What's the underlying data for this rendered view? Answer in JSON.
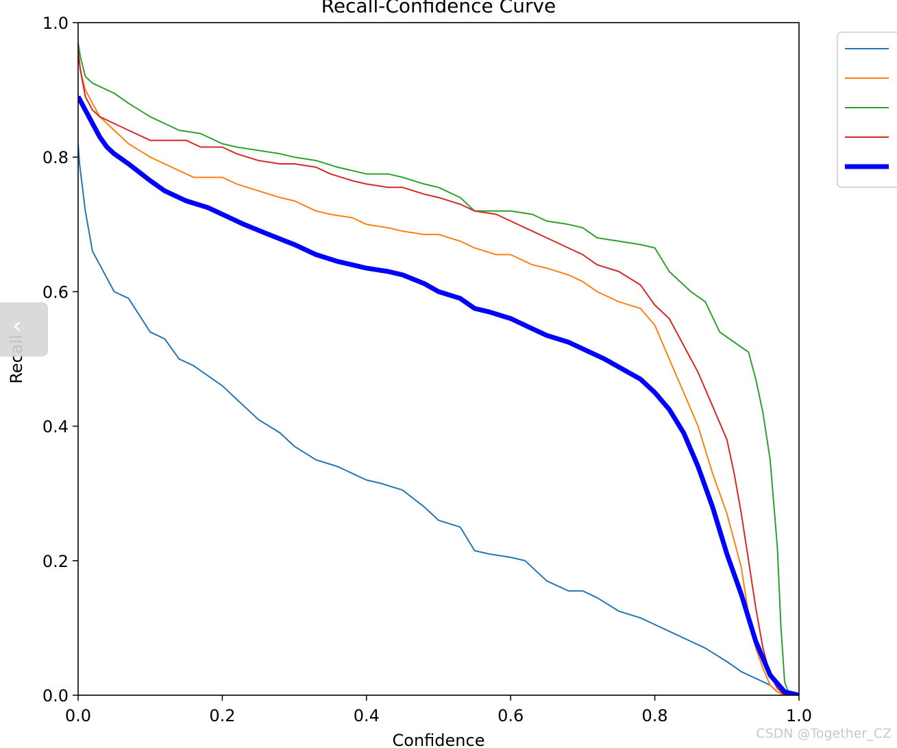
{
  "chart_data": {
    "type": "line",
    "title": "Recall-Confidence Curve",
    "xlabel": "Confidence",
    "ylabel": "Recall",
    "xlim": [
      0,
      1
    ],
    "ylim": [
      0,
      1
    ],
    "grid": false,
    "legend_placement": "outside-top-right",
    "xticks": [
      "0.0",
      "0.2",
      "0.4",
      "0.6",
      "0.8",
      "1.0"
    ],
    "yticks": [
      "0.0",
      "0.2",
      "0.4",
      "0.6",
      "0.8",
      "1.0"
    ],
    "series": [
      {
        "color": "#1f77b4",
        "width": 2,
        "x": [
          0.0,
          0.002,
          0.01,
          0.02,
          0.03,
          0.05,
          0.07,
          0.1,
          0.12,
          0.14,
          0.16,
          0.2,
          0.22,
          0.25,
          0.28,
          0.3,
          0.33,
          0.36,
          0.38,
          0.4,
          0.42,
          0.45,
          0.48,
          0.5,
          0.53,
          0.55,
          0.57,
          0.6,
          0.62,
          0.65,
          0.68,
          0.7,
          0.72,
          0.75,
          0.78,
          0.8,
          0.82,
          0.85,
          0.87,
          0.9,
          0.92,
          0.94,
          0.96,
          0.97,
          0.98,
          0.99
        ],
        "y": [
          0.82,
          0.79,
          0.72,
          0.66,
          0.64,
          0.6,
          0.59,
          0.54,
          0.53,
          0.5,
          0.49,
          0.46,
          0.44,
          0.41,
          0.39,
          0.37,
          0.35,
          0.34,
          0.33,
          0.32,
          0.315,
          0.305,
          0.28,
          0.26,
          0.25,
          0.215,
          0.21,
          0.205,
          0.2,
          0.17,
          0.155,
          0.155,
          0.145,
          0.125,
          0.115,
          0.105,
          0.095,
          0.08,
          0.07,
          0.05,
          0.035,
          0.025,
          0.015,
          0.005,
          0.0,
          0.0
        ]
      },
      {
        "color": "#ff7f0e",
        "width": 2,
        "x": [
          0.0,
          0.005,
          0.01,
          0.02,
          0.03,
          0.05,
          0.07,
          0.1,
          0.12,
          0.14,
          0.16,
          0.2,
          0.22,
          0.25,
          0.28,
          0.3,
          0.33,
          0.35,
          0.38,
          0.4,
          0.43,
          0.45,
          0.48,
          0.5,
          0.53,
          0.55,
          0.58,
          0.6,
          0.63,
          0.65,
          0.68,
          0.7,
          0.72,
          0.75,
          0.78,
          0.8,
          0.82,
          0.84,
          0.86,
          0.88,
          0.9,
          0.91,
          0.92,
          0.93,
          0.94,
          0.95,
          0.96,
          0.97,
          0.98,
          0.99
        ],
        "y": [
          0.95,
          0.92,
          0.9,
          0.88,
          0.86,
          0.84,
          0.82,
          0.8,
          0.79,
          0.78,
          0.77,
          0.77,
          0.76,
          0.75,
          0.74,
          0.735,
          0.72,
          0.715,
          0.71,
          0.7,
          0.695,
          0.69,
          0.685,
          0.685,
          0.675,
          0.665,
          0.655,
          0.655,
          0.64,
          0.635,
          0.625,
          0.615,
          0.6,
          0.585,
          0.575,
          0.55,
          0.5,
          0.45,
          0.4,
          0.33,
          0.27,
          0.23,
          0.19,
          0.12,
          0.07,
          0.04,
          0.015,
          0.005,
          0.0,
          0.0
        ]
      },
      {
        "color": "#2ca02c",
        "width": 2,
        "x": [
          0.0,
          0.003,
          0.01,
          0.02,
          0.03,
          0.05,
          0.07,
          0.1,
          0.12,
          0.14,
          0.17,
          0.2,
          0.22,
          0.25,
          0.28,
          0.3,
          0.33,
          0.36,
          0.38,
          0.4,
          0.43,
          0.45,
          0.48,
          0.5,
          0.53,
          0.55,
          0.58,
          0.6,
          0.63,
          0.65,
          0.68,
          0.7,
          0.72,
          0.75,
          0.78,
          0.8,
          0.82,
          0.85,
          0.87,
          0.89,
          0.91,
          0.93,
          0.94,
          0.95,
          0.96,
          0.97,
          0.975,
          0.98,
          0.985,
          0.99,
          1.0
        ],
        "y": [
          0.97,
          0.95,
          0.92,
          0.91,
          0.905,
          0.895,
          0.88,
          0.86,
          0.85,
          0.84,
          0.835,
          0.82,
          0.815,
          0.81,
          0.805,
          0.8,
          0.795,
          0.785,
          0.78,
          0.775,
          0.775,
          0.77,
          0.76,
          0.755,
          0.74,
          0.72,
          0.72,
          0.72,
          0.715,
          0.705,
          0.7,
          0.695,
          0.68,
          0.675,
          0.67,
          0.665,
          0.63,
          0.6,
          0.585,
          0.54,
          0.525,
          0.51,
          0.47,
          0.42,
          0.35,
          0.22,
          0.1,
          0.02,
          0.005,
          0.0,
          0.0
        ]
      },
      {
        "color": "#d62728",
        "width": 2,
        "x": [
          0.0,
          0.003,
          0.01,
          0.02,
          0.03,
          0.05,
          0.07,
          0.1,
          0.12,
          0.15,
          0.17,
          0.2,
          0.22,
          0.25,
          0.28,
          0.3,
          0.33,
          0.35,
          0.38,
          0.4,
          0.43,
          0.45,
          0.48,
          0.5,
          0.53,
          0.55,
          0.58,
          0.6,
          0.62,
          0.65,
          0.68,
          0.7,
          0.72,
          0.75,
          0.78,
          0.8,
          0.82,
          0.84,
          0.86,
          0.88,
          0.9,
          0.91,
          0.92,
          0.93,
          0.94,
          0.95,
          0.96,
          0.97,
          0.98,
          0.99
        ],
        "y": [
          0.96,
          0.93,
          0.89,
          0.87,
          0.86,
          0.85,
          0.84,
          0.825,
          0.825,
          0.825,
          0.815,
          0.815,
          0.805,
          0.795,
          0.79,
          0.79,
          0.785,
          0.775,
          0.765,
          0.76,
          0.755,
          0.755,
          0.745,
          0.74,
          0.73,
          0.72,
          0.715,
          0.705,
          0.695,
          0.68,
          0.665,
          0.655,
          0.64,
          0.63,
          0.61,
          0.58,
          0.56,
          0.52,
          0.48,
          0.43,
          0.38,
          0.33,
          0.27,
          0.2,
          0.13,
          0.07,
          0.03,
          0.01,
          0.0,
          0.0
        ]
      },
      {
        "color": "#0000ff",
        "width": 7,
        "x": [
          0.0,
          0.01,
          0.02,
          0.03,
          0.04,
          0.05,
          0.07,
          0.1,
          0.12,
          0.15,
          0.18,
          0.2,
          0.23,
          0.26,
          0.3,
          0.33,
          0.36,
          0.38,
          0.4,
          0.43,
          0.45,
          0.48,
          0.5,
          0.53,
          0.55,
          0.57,
          0.6,
          0.63,
          0.65,
          0.68,
          0.7,
          0.73,
          0.75,
          0.78,
          0.8,
          0.82,
          0.84,
          0.86,
          0.88,
          0.9,
          0.92,
          0.94,
          0.96,
          0.98,
          1.0
        ],
        "y": [
          0.89,
          0.87,
          0.85,
          0.83,
          0.815,
          0.805,
          0.79,
          0.765,
          0.75,
          0.735,
          0.725,
          0.715,
          0.7,
          0.687,
          0.67,
          0.655,
          0.645,
          0.64,
          0.635,
          0.63,
          0.625,
          0.612,
          0.6,
          0.59,
          0.575,
          0.57,
          0.56,
          0.545,
          0.535,
          0.525,
          0.515,
          0.5,
          0.488,
          0.47,
          0.45,
          0.425,
          0.39,
          0.34,
          0.28,
          0.21,
          0.15,
          0.08,
          0.03,
          0.005,
          0.0
        ]
      }
    ]
  },
  "watermark": "CSDN @Together_CZ",
  "side_tab_glyph": "‹"
}
